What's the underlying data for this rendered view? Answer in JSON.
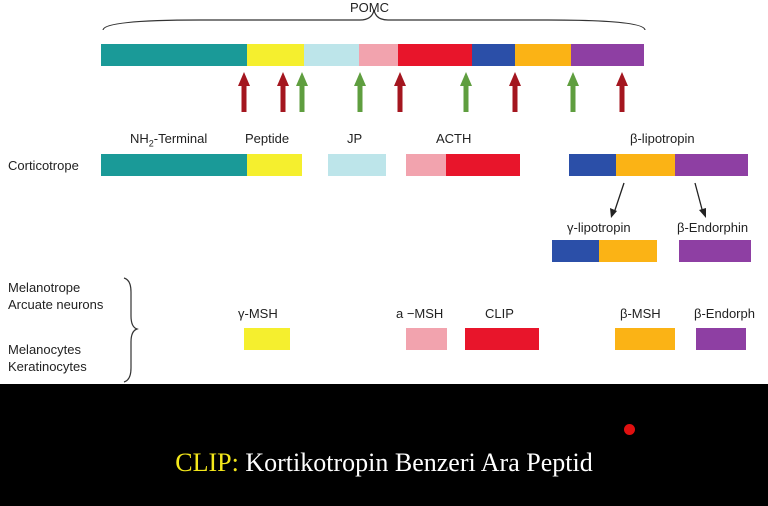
{
  "colors": {
    "teal": "#1a9a98",
    "yellow": "#f5ef2e",
    "lightblue": "#bde5ea",
    "pink": "#f2a3ae",
    "red": "#e8152b",
    "blue": "#2b4fa8",
    "orange": "#fbb315",
    "purple": "#8e3fa3",
    "arrow_red": "#a4161f",
    "arrow_green": "#5f9e3f",
    "caption_highlight": "#f4e81b"
  },
  "diagram": {
    "title": "POMC",
    "labels": {
      "nh2": "NH",
      "nh2_sub": "2",
      "nh2_rest": "-Terminal",
      "peptide": "Peptide",
      "jp": "JP",
      "acth": "ACTH",
      "beta_lipotropin": "β-lipotropin",
      "gamma_lipotropin": "γ-lipotropin",
      "beta_endorphin_1": "β-Endorphin",
      "gamma_msh": "γ-MSH",
      "alpha_msh": "a −MSH",
      "clip": "CLIP",
      "beta_msh": "β-MSH",
      "beta_endorphin_2": "β-Endorph"
    },
    "rows": {
      "corticotrope": "Corticotrope",
      "melanotrope": "Melanotrope",
      "arcuate": "Arcuate neurons",
      "melanocytes": "Melanocytes",
      "keratinocytes": "Keratinocytes"
    }
  },
  "caption": {
    "highlight": "CLIP:",
    "text": " Kortikotropin Benzeri Ara Peptid"
  }
}
